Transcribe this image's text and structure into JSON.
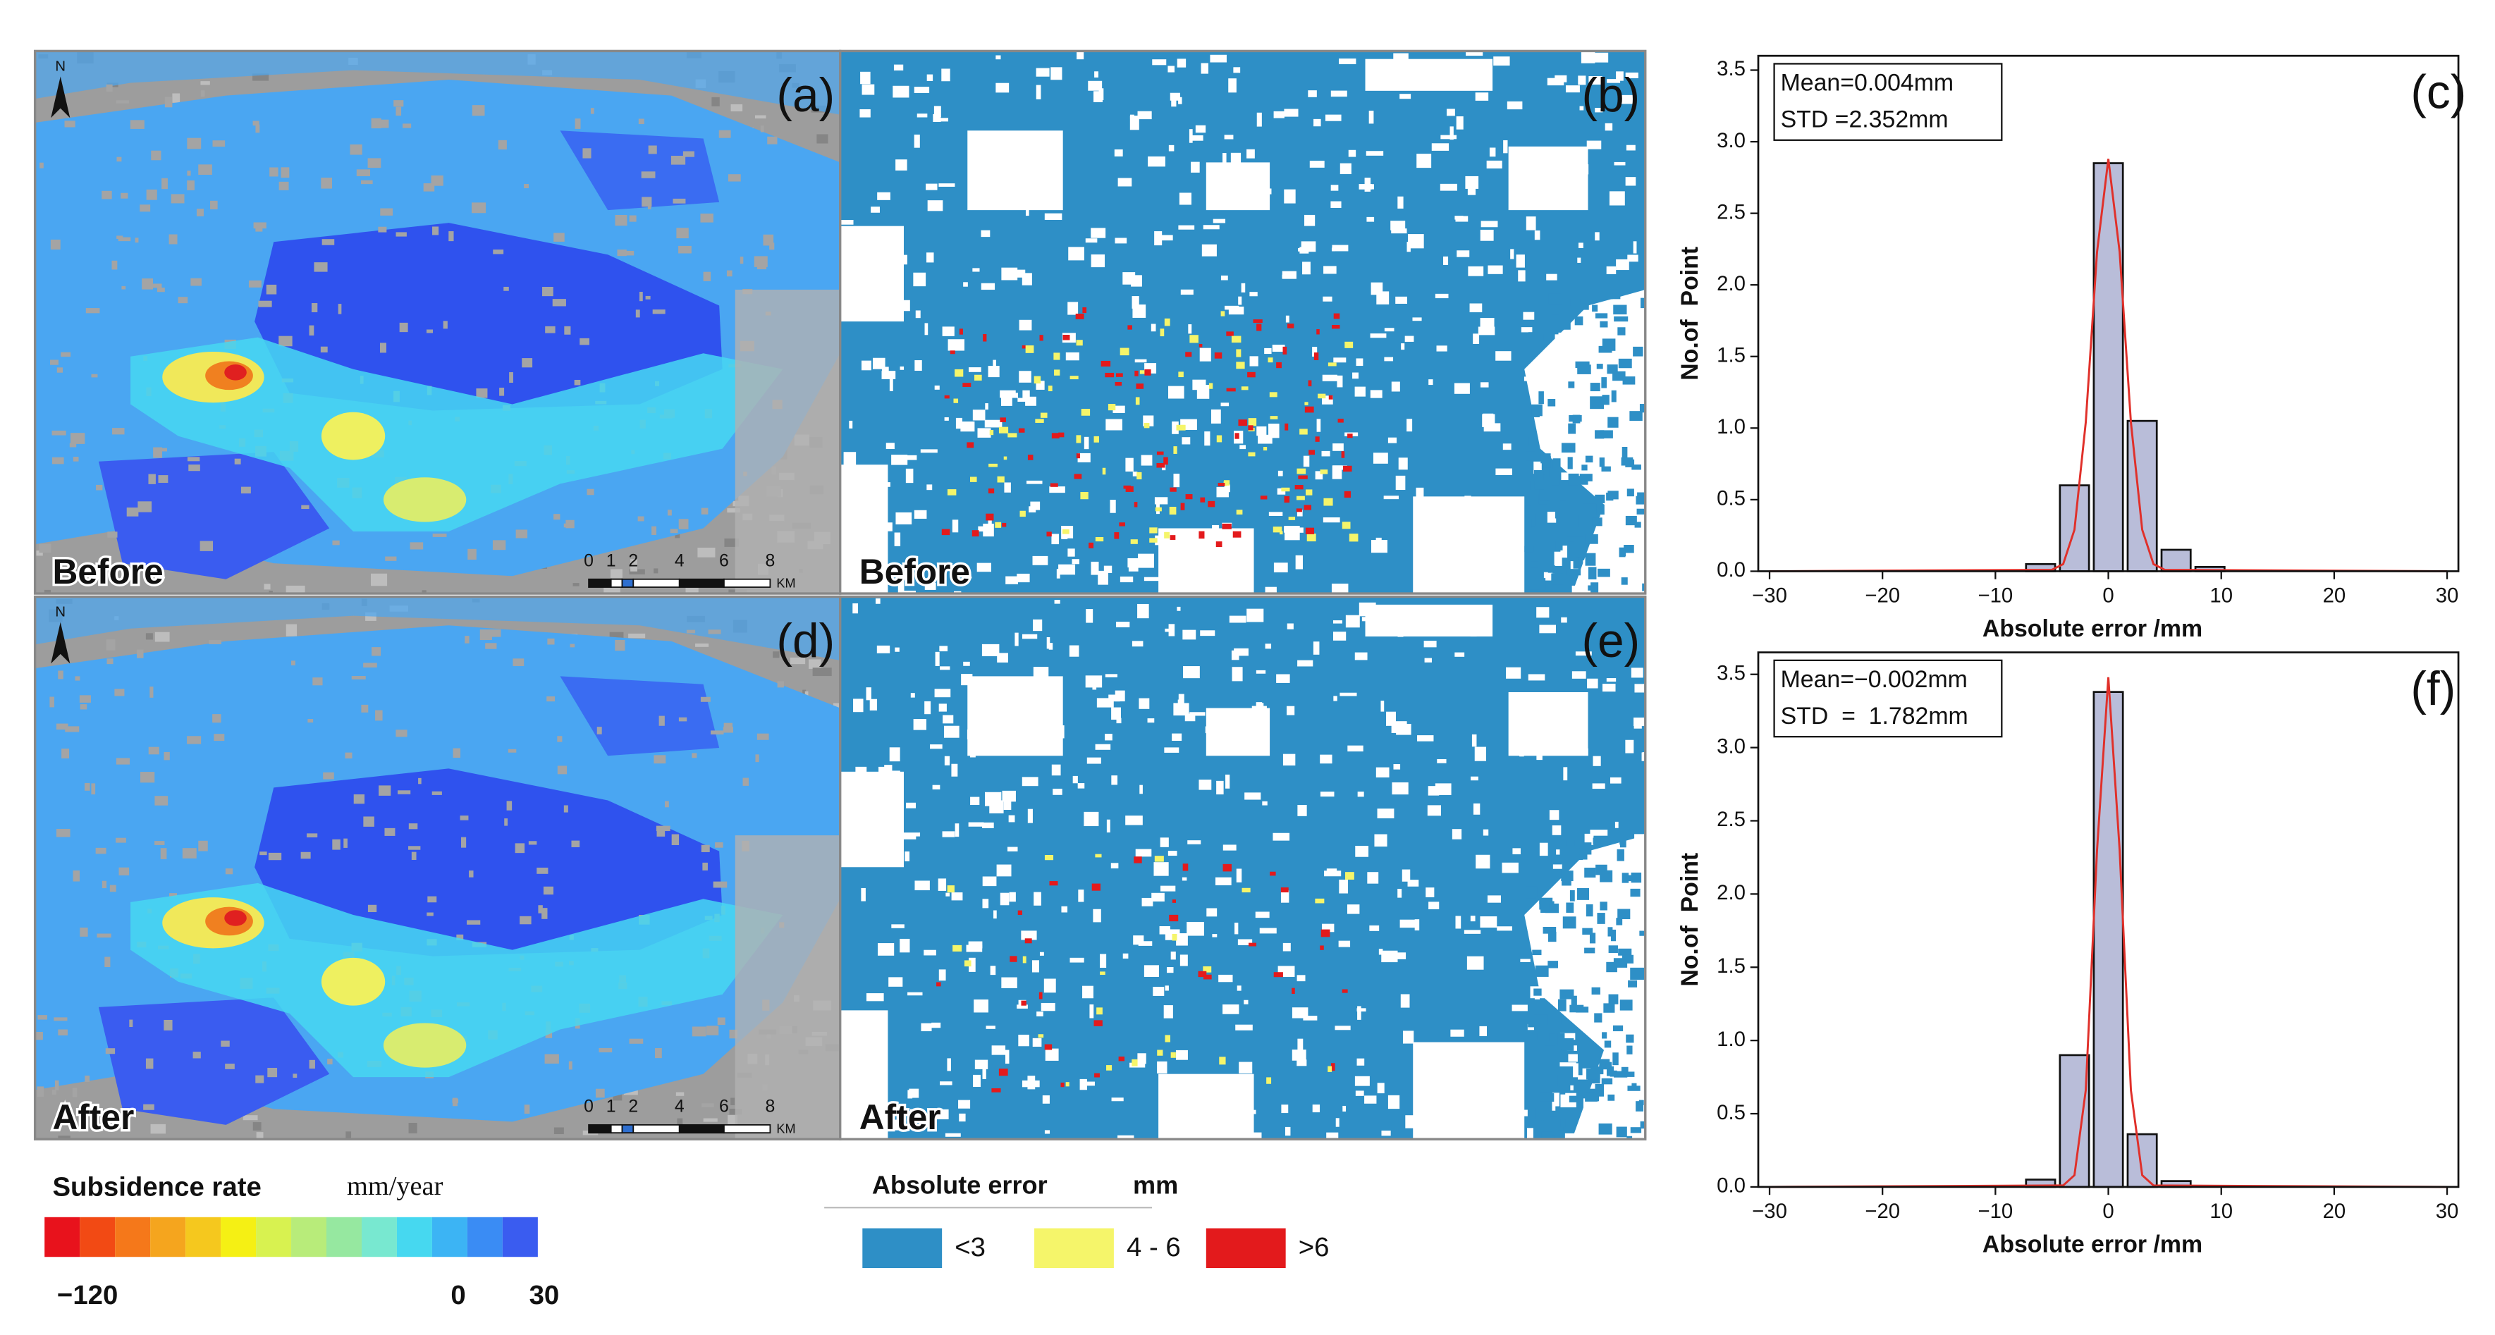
{
  "maps": {
    "north": "N",
    "scale_bar": {
      "labels": [
        "0",
        "1",
        "2",
        "4",
        "6",
        "8"
      ],
      "unit": "KM"
    },
    "panels": [
      {
        "label": "(a)",
        "caption": "Before"
      },
      {
        "label": "(b)",
        "caption": "Before"
      },
      {
        "label": "(d)",
        "caption": "After"
      },
      {
        "label": "(e)",
        "caption": "After"
      }
    ]
  },
  "subsidence_legend": {
    "title": "Subsidence rate",
    "unit": "mm/year",
    "colors": [
      "#e8121c",
      "#f24a14",
      "#f5781a",
      "#f5a51e",
      "#f5c81e",
      "#f5f014",
      "#d8f250",
      "#b8ec7a",
      "#96e8a0",
      "#78e8d0",
      "#46d8f0",
      "#3cb4f4",
      "#3a8cf4",
      "#3a5cf0"
    ],
    "labels": [
      "−120",
      "0",
      "30"
    ]
  },
  "error_legend": {
    "title": "Absolute error",
    "unit": "mm",
    "classes": [
      {
        "label": "<3",
        "color": "#2e8fc6"
      },
      {
        "label": "4 - 6",
        "color": "#f5f56a"
      },
      {
        "label": ">6",
        "color": "#e31a1c"
      }
    ]
  },
  "chart_data": [
    {
      "type": "histogram",
      "label": "(c)",
      "annotations": [
        "Mean=0.004mm",
        "STD =2.352mm"
      ],
      "bins": [
        -7.5,
        -4.5,
        -1.5,
        1.5,
        4.5,
        7.5,
        10.5
      ],
      "values": [
        0.05,
        0.6,
        2.85,
        1.05,
        0.15,
        0.03
      ],
      "color": "#b9bdd9",
      "fit": {
        "color": "#e0302a",
        "x": [
          -30,
          -5,
          -4,
          -3,
          -2,
          -1,
          0,
          1,
          2,
          3,
          4,
          5,
          30
        ],
        "values": [
          0,
          0.01,
          0.05,
          0.29,
          1.04,
          2.23,
          2.88,
          2.23,
          1.04,
          0.29,
          0.05,
          0.01,
          0
        ]
      },
      "xlim": [
        -31,
        31
      ],
      "ylim": [
        0,
        3.6
      ],
      "xticks": [
        {
          "value": -30,
          "label": "−30"
        },
        {
          "value": -20,
          "label": "−20"
        },
        {
          "value": -10,
          "label": "−10"
        },
        0,
        10,
        20,
        30
      ],
      "yticks": [
        {
          "value": 0,
          "label": "0.0"
        },
        0.5,
        {
          "value": 1,
          "label": "1.0"
        },
        1.5,
        {
          "value": 2,
          "label": "2.0"
        },
        2.5,
        {
          "value": 3,
          "label": "3.0"
        },
        3.5
      ],
      "x_label": "Absolute error /mm",
      "y_label": "No.of  Point"
    },
    {
      "type": "histogram",
      "label": "(f)",
      "annotations": [
        "Mean=−0.002mm",
        "STD  =  1.782mm"
      ],
      "bins": [
        -7.5,
        -4.5,
        -1.5,
        1.5,
        4.5,
        7.5
      ],
      "values": [
        0.05,
        0.9,
        3.38,
        0.36,
        0.04
      ],
      "color": "#b9bdd9",
      "fit": {
        "color": "#e0302a",
        "x": [
          -30,
          -4,
          -3,
          -2,
          -1,
          0,
          1,
          2,
          3,
          4,
          30
        ],
        "values": [
          0,
          0.01,
          0.08,
          0.66,
          2.3,
          3.48,
          2.3,
          0.66,
          0.08,
          0.01,
          0
        ]
      },
      "xlim": [
        -31,
        31
      ],
      "ylim": [
        0,
        3.65
      ],
      "xticks": [
        {
          "value": -30,
          "label": "−30"
        },
        {
          "value": -20,
          "label": "−20"
        },
        {
          "value": -10,
          "label": "−10"
        },
        0,
        10,
        20,
        30
      ],
      "yticks": [
        {
          "value": 0,
          "label": "0.0"
        },
        0.5,
        {
          "value": 1,
          "label": "1.0"
        },
        1.5,
        {
          "value": 2,
          "label": "2.0"
        },
        2.5,
        {
          "value": 3,
          "label": "3.0"
        },
        3.5
      ],
      "x_label": "Absolute error /mm",
      "y_label": "No.of  Point"
    }
  ]
}
